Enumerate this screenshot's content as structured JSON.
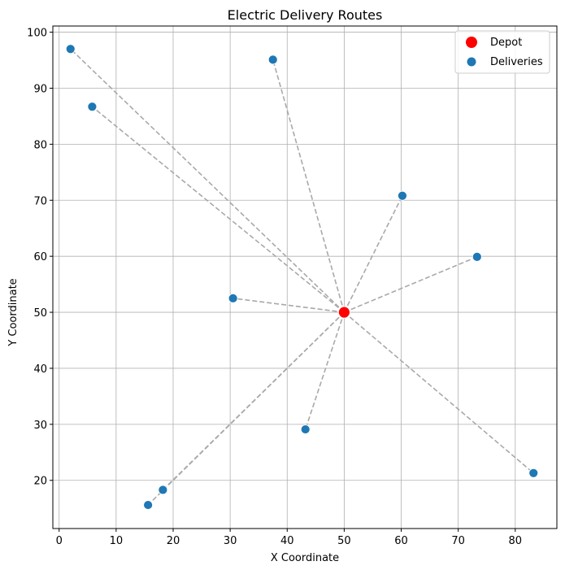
{
  "chart_data": {
    "type": "scatter",
    "title": "Electric Delivery Routes",
    "xlabel": "X Coordinate",
    "ylabel": "Y Coordinate",
    "xlim": [
      -1.1,
      87.3
    ],
    "ylim": [
      11.4,
      101.1
    ],
    "xticks": [
      0,
      10,
      20,
      30,
      40,
      50,
      60,
      70,
      80
    ],
    "yticks": [
      20,
      30,
      40,
      50,
      60,
      70,
      80,
      90,
      100
    ],
    "grid": true,
    "legend_position": "top-right",
    "series": [
      {
        "name": "Depot",
        "color": "#ff0000",
        "points": [
          [
            50,
            50
          ]
        ]
      },
      {
        "name": "Deliveries",
        "color": "#1f77b4",
        "points": [
          [
            2.0,
            97.0
          ],
          [
            5.8,
            86.7
          ],
          [
            37.5,
            95.1
          ],
          [
            60.2,
            70.8
          ],
          [
            73.3,
            59.9
          ],
          [
            30.5,
            52.5
          ],
          [
            43.2,
            29.1
          ],
          [
            83.2,
            21.3
          ],
          [
            18.2,
            18.3
          ],
          [
            15.6,
            15.6
          ]
        ]
      }
    ],
    "routes": {
      "from": "Depot",
      "to": "Deliveries",
      "style": "dashed",
      "color": "#a9a9a9"
    }
  }
}
